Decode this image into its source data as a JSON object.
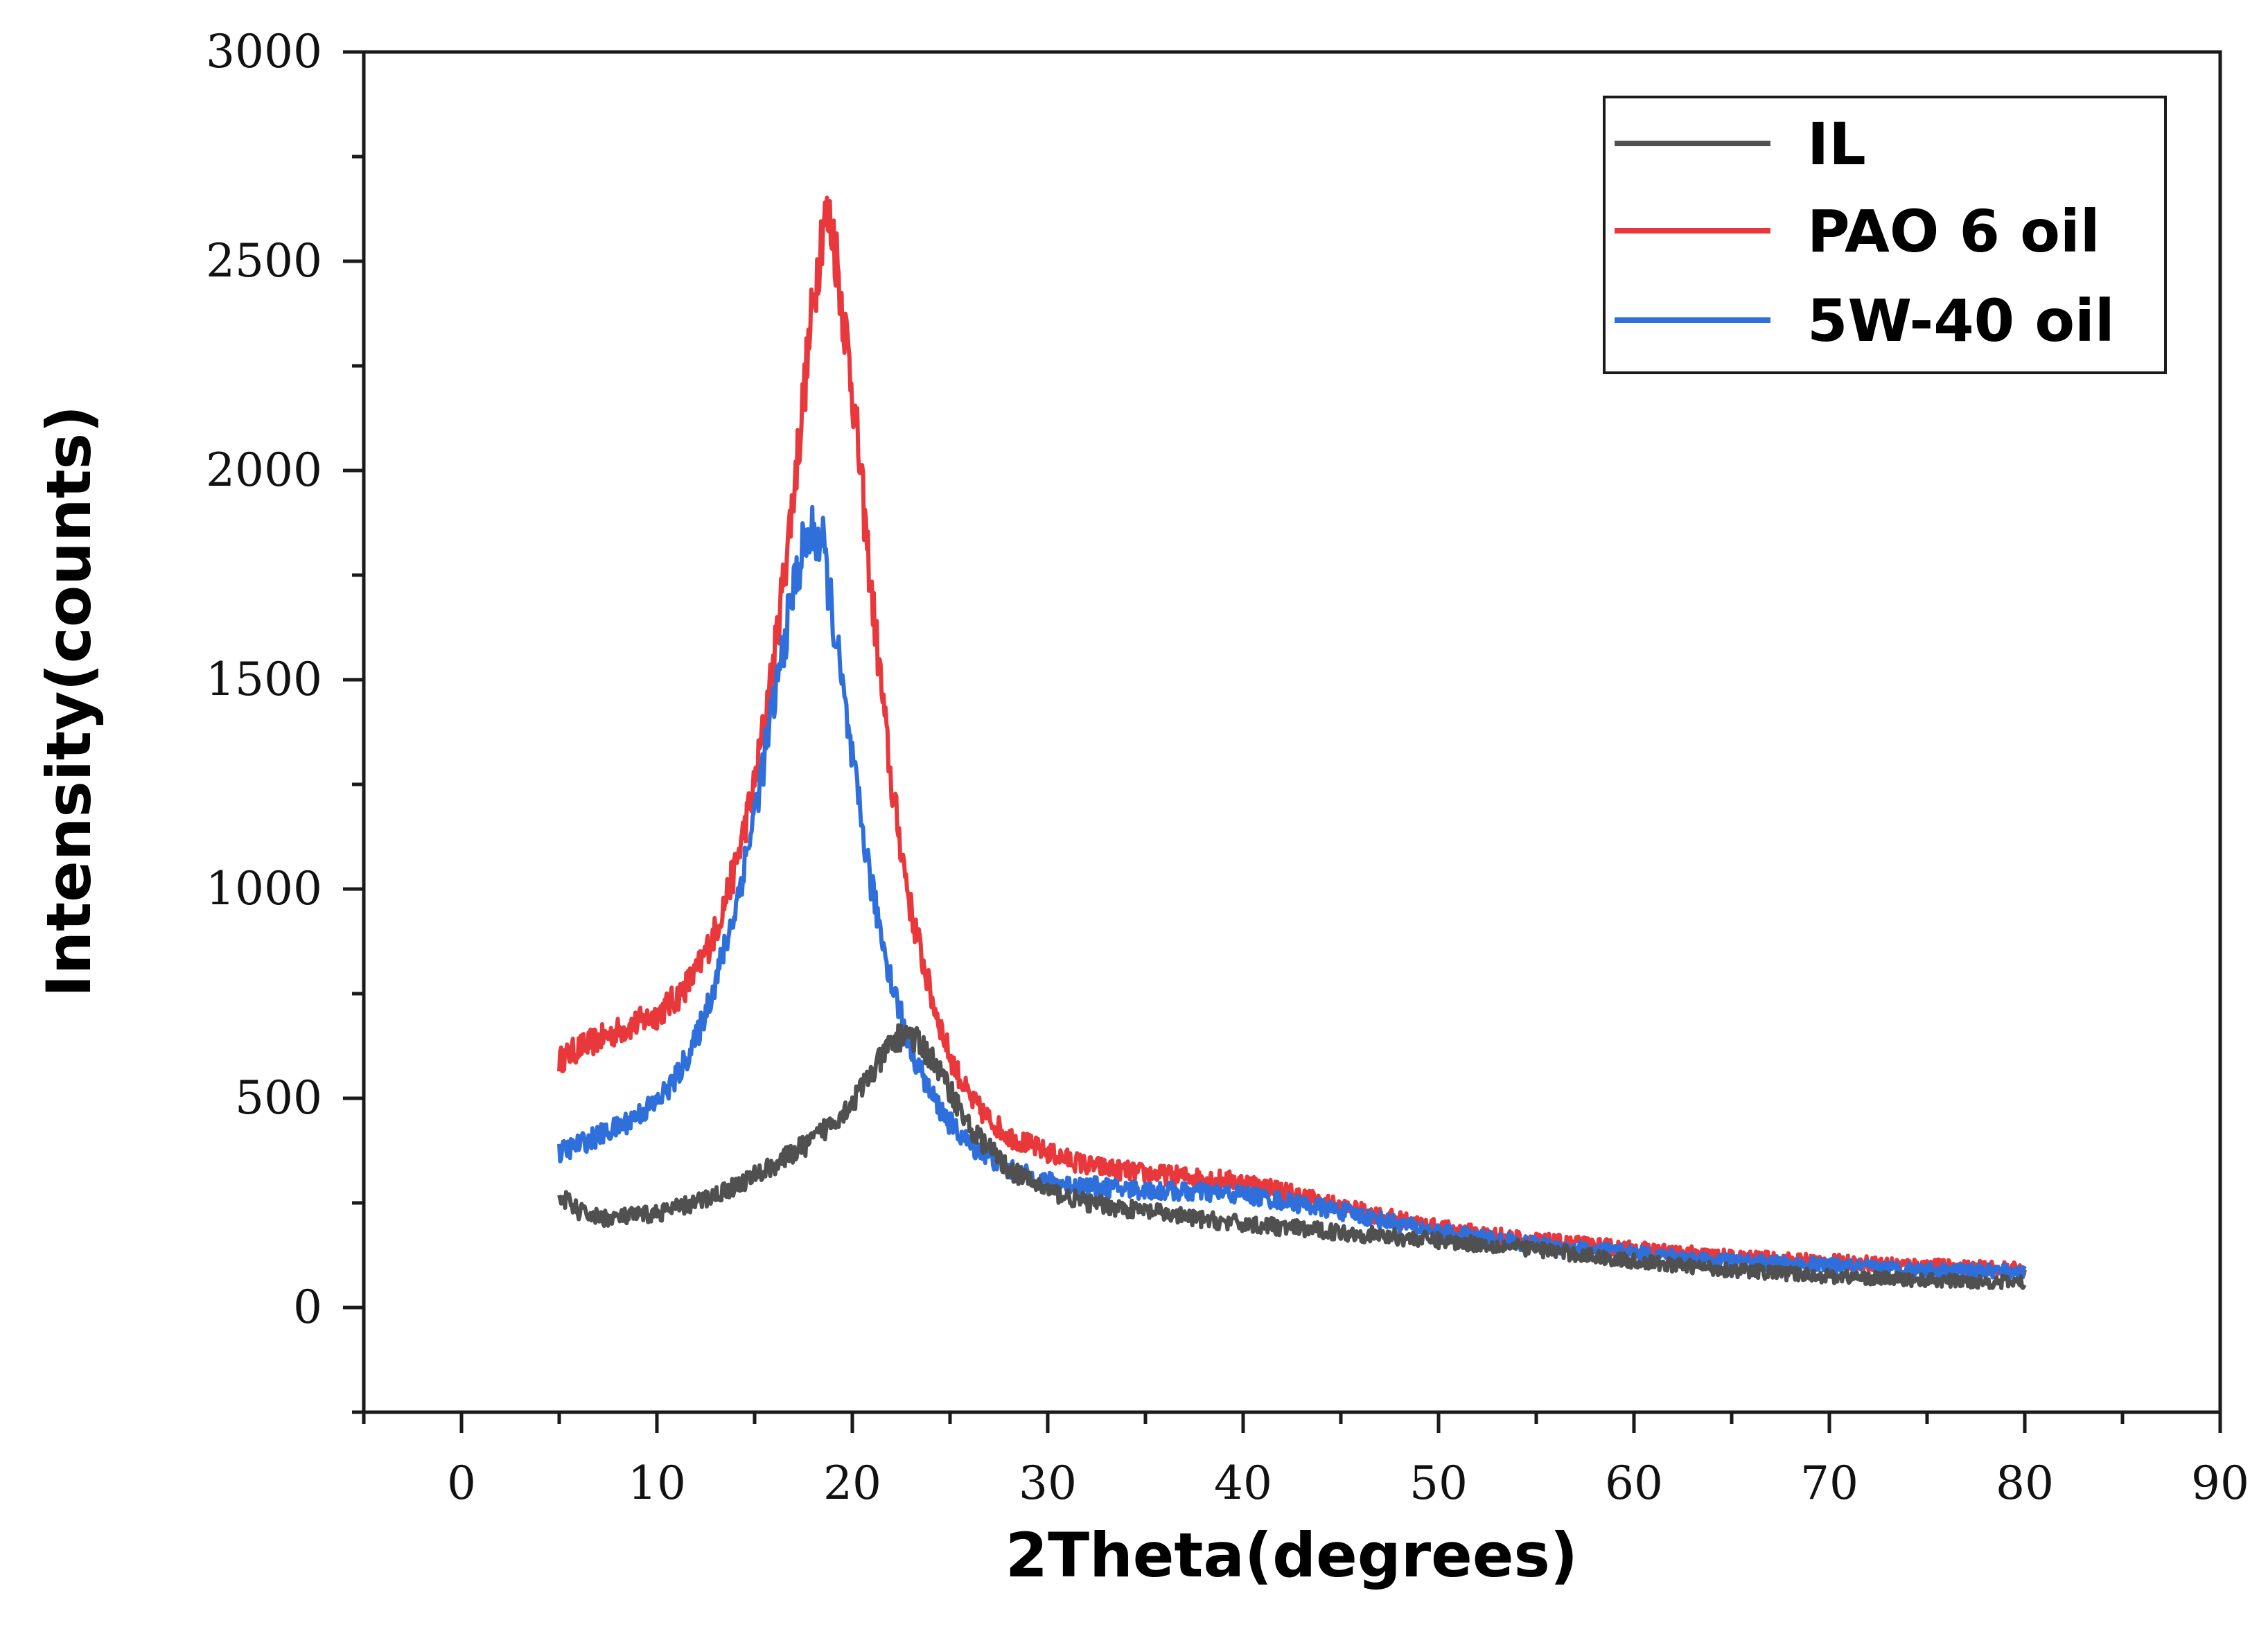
{
  "chart_data": {
    "type": "line",
    "title": "",
    "xlabel": "2Theta(degrees)",
    "ylabel": "Intensity(counts)",
    "xlim": [
      -5,
      90
    ],
    "ylim": [
      -250,
      3000
    ],
    "xticks": [
      0,
      10,
      20,
      30,
      40,
      50,
      60,
      70,
      80,
      90
    ],
    "yticks": [
      0,
      500,
      1000,
      1500,
      2000,
      2500,
      3000
    ],
    "grid": false,
    "legend_position": "top-right",
    "series": [
      {
        "name": "IL",
        "color": "#505050",
        "x": [
          5,
          6,
          7,
          8,
          9,
          10,
          12,
          14,
          16,
          18,
          20,
          21,
          22,
          22.8,
          24,
          25,
          26,
          28,
          30,
          32,
          35,
          38,
          40,
          45,
          50,
          55,
          60,
          65,
          70,
          75,
          80
        ],
        "y": [
          270,
          230,
          215,
          215,
          220,
          225,
          250,
          290,
          340,
          400,
          490,
          560,
          630,
          660,
          600,
          520,
          430,
          330,
          280,
          250,
          230,
          210,
          200,
          180,
          160,
          140,
          110,
          90,
          75,
          65,
          60
        ]
      },
      {
        "name": "PAO 6 oil",
        "color": "#E8383C",
        "x": [
          5,
          6,
          7,
          8,
          9,
          10,
          11,
          12,
          13,
          14,
          15,
          16,
          17,
          18,
          18.5,
          19,
          20,
          21,
          22,
          23,
          24,
          25,
          26,
          27,
          28,
          30,
          32,
          35,
          38,
          40,
          42,
          45,
          50,
          55,
          60,
          65,
          70,
          75,
          80
        ],
        "y": [
          590,
          620,
          640,
          660,
          680,
          700,
          740,
          800,
          900,
          1050,
          1250,
          1550,
          1950,
          2400,
          2600,
          2580,
          2200,
          1700,
          1250,
          950,
          750,
          600,
          500,
          450,
          410,
          370,
          340,
          320,
          310,
          300,
          280,
          240,
          190,
          160,
          140,
          120,
          110,
          100,
          90
        ]
      },
      {
        "name": "5W-40 oil",
        "color": "#2E6FDC",
        "x": [
          5,
          6,
          7,
          8,
          9,
          10,
          11,
          12,
          13,
          14,
          15,
          16,
          17,
          17.5,
          18,
          18.5,
          19,
          20,
          21,
          22,
          23,
          24,
          25,
          26,
          28,
          30,
          32,
          35,
          38,
          40,
          42,
          45,
          50,
          55,
          60,
          65,
          70,
          75,
          80
        ],
        "y": [
          370,
          390,
          410,
          430,
          460,
          490,
          550,
          640,
          780,
          950,
          1180,
          1450,
          1720,
          1820,
          1850,
          1820,
          1650,
          1300,
          1000,
          780,
          620,
          510,
          440,
          390,
          330,
          300,
          290,
          280,
          275,
          270,
          255,
          230,
          180,
          150,
          130,
          110,
          100,
          90,
          85
        ]
      }
    ]
  }
}
